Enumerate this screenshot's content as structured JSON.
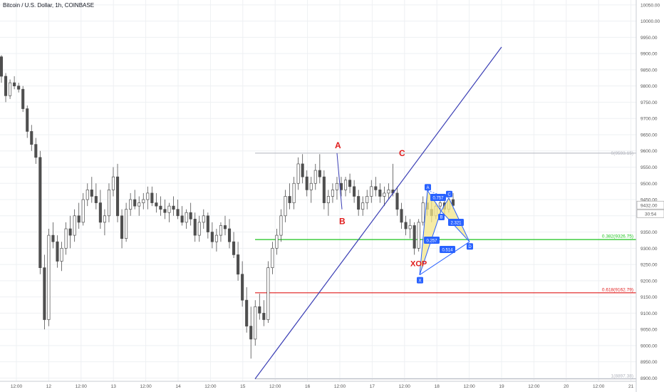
{
  "header": {
    "title": "Bitcoin / U.S. Dollar, 1h, COINBASE"
  },
  "colors": {
    "up": "#4f4f4f",
    "down": "#4f4f4f",
    "grid": "#eef0f3",
    "fib_green": "#1ec41e",
    "fib_red": "#e01b1b",
    "trend": "#3b3fb5",
    "pattern_fill": "#f3e58a",
    "pattern_line": "#2962ff",
    "label_red": "#e01b1b"
  },
  "chart_data": {
    "type": "candlestick",
    "title": "Bitcoin / U.S. Dollar, 1h, COINBASE",
    "y_ticks": [
      "10050.00",
      "10000.00",
      "9950.00",
      "9900.00",
      "9850.00",
      "9800.00",
      "9750.00",
      "9700.00",
      "9650.00",
      "9600.00",
      "9550.00",
      "9500.00",
      "9450.00",
      "9400.00",
      "9350.00",
      "9300.00",
      "9250.00",
      "9200.00",
      "9150.00",
      "9100.00",
      "9050.00",
      "9000.00",
      "8950.00",
      "8900.00"
    ],
    "x_ticks": [
      "12:00",
      "12",
      "12:00",
      "13",
      "12:00",
      "14",
      "12:00",
      "15",
      "12:00",
      "16",
      "12:00",
      "17",
      "12:00",
      "18",
      "12:00",
      "19",
      "12:00",
      "20",
      "12:00",
      "21"
    ],
    "ylim": [
      8890,
      10065
    ],
    "price_label": "9432.00",
    "countdown": "30:54",
    "fib_levels": [
      {
        "label": "0.382(9326.75)",
        "value": 9326.75,
        "color": "green"
      },
      {
        "label": "0.618(9162.79)",
        "value": 9162.79,
        "color": "red"
      }
    ],
    "range_top": {
      "label": "0(9593.15)",
      "value": 9593.15
    },
    "range_bottom": {
      "label": "1(8897.38)",
      "value": 8897.38
    },
    "trend_line": {
      "from_x": "15 06:00",
      "from_y": 8897.38,
      "to_x": "19 06:00",
      "to_y": 9920
    },
    "abc_labels": [
      "A",
      "B",
      "C"
    ],
    "pattern_label": "XOP",
    "harmonic_ratios": [
      "0.757",
      "2.321",
      "0.257",
      "0.514"
    ],
    "harmonic_points": [
      "X",
      "A",
      "B",
      "C",
      "D"
    ],
    "candles": [
      [
        9890,
        9895,
        9810,
        9830
      ],
      [
        9830,
        9840,
        9750,
        9770
      ],
      [
        9770,
        9820,
        9760,
        9810
      ],
      [
        9810,
        9830,
        9790,
        9800
      ],
      [
        9800,
        9810,
        9780,
        9790
      ],
      [
        9790,
        9800,
        9720,
        9730
      ],
      [
        9730,
        9740,
        9640,
        9660
      ],
      [
        9660,
        9680,
        9600,
        9620
      ],
      [
        9620,
        9640,
        9560,
        9580
      ],
      [
        9580,
        9600,
        9220,
        9240
      ],
      [
        9240,
        9280,
        9050,
        9080
      ],
      [
        9080,
        9360,
        9060,
        9340
      ],
      [
        9340,
        9380,
        9300,
        9320
      ],
      [
        9320,
        9340,
        9240,
        9260
      ],
      [
        9260,
        9320,
        9230,
        9300
      ],
      [
        9300,
        9380,
        9280,
        9360
      ],
      [
        9360,
        9400,
        9300,
        9340
      ],
      [
        9340,
        9420,
        9320,
        9400
      ],
      [
        9400,
        9440,
        9360,
        9380
      ],
      [
        9380,
        9470,
        9370,
        9450
      ],
      [
        9450,
        9500,
        9430,
        9480
      ],
      [
        9480,
        9520,
        9440,
        9460
      ],
      [
        9460,
        9500,
        9420,
        9440
      ],
      [
        9440,
        9480,
        9360,
        9380
      ],
      [
        9380,
        9420,
        9340,
        9400
      ],
      [
        9400,
        9500,
        9380,
        9480
      ],
      [
        9480,
        9550,
        9460,
        9520
      ],
      [
        9520,
        9560,
        9380,
        9400
      ],
      [
        9400,
        9420,
        9300,
        9330
      ],
      [
        9330,
        9440,
        9320,
        9420
      ],
      [
        9420,
        9470,
        9400,
        9450
      ],
      [
        9450,
        9480,
        9420,
        9430
      ],
      [
        9430,
        9460,
        9400,
        9440
      ],
      [
        9440,
        9470,
        9420,
        9450
      ],
      [
        9450,
        9490,
        9420,
        9470
      ],
      [
        9470,
        9490,
        9430,
        9440
      ],
      [
        9440,
        9470,
        9410,
        9430
      ],
      [
        9430,
        9460,
        9400,
        9420
      ],
      [
        9420,
        9450,
        9390,
        9410
      ],
      [
        9410,
        9440,
        9380,
        9430
      ],
      [
        9430,
        9460,
        9400,
        9420
      ],
      [
        9420,
        9450,
        9390,
        9400
      ],
      [
        9400,
        9430,
        9370,
        9380
      ],
      [
        9380,
        9420,
        9360,
        9410
      ],
      [
        9410,
        9440,
        9370,
        9390
      ],
      [
        9390,
        9410,
        9320,
        9340
      ],
      [
        9340,
        9400,
        9320,
        9380
      ],
      [
        9380,
        9420,
        9360,
        9400
      ],
      [
        9400,
        9410,
        9330,
        9350
      ],
      [
        9350,
        9380,
        9300,
        9320
      ],
      [
        9320,
        9360,
        9290,
        9340
      ],
      [
        9340,
        9380,
        9320,
        9370
      ],
      [
        9370,
        9400,
        9340,
        9360
      ],
      [
        9360,
        9390,
        9300,
        9320
      ],
      [
        9320,
        9350,
        9270,
        9280
      ],
      [
        9280,
        9320,
        9200,
        9220
      ],
      [
        9220,
        9260,
        9120,
        9140
      ],
      [
        9140,
        9180,
        9040,
        9060
      ],
      [
        9060,
        9120,
        8960,
        9020
      ],
      [
        9020,
        9140,
        9000,
        9120
      ],
      [
        9120,
        9160,
        9080,
        9100
      ],
      [
        9100,
        9140,
        9060,
        9080
      ],
      [
        9080,
        9260,
        9070,
        9240
      ],
      [
        9240,
        9320,
        9220,
        9300
      ],
      [
        9300,
        9360,
        9280,
        9340
      ],
      [
        9340,
        9420,
        9320,
        9400
      ],
      [
        9400,
        9480,
        9380,
        9460
      ],
      [
        9460,
        9500,
        9420,
        9440
      ],
      [
        9440,
        9520,
        9420,
        9500
      ],
      [
        9500,
        9580,
        9480,
        9560
      ],
      [
        9560,
        9590,
        9500,
        9520
      ],
      [
        9520,
        9540,
        9460,
        9480
      ],
      [
        9480,
        9520,
        9440,
        9500
      ],
      [
        9500,
        9560,
        9480,
        9540
      ],
      [
        9540,
        9590,
        9500,
        9520
      ],
      [
        9520,
        9540,
        9420,
        9440
      ],
      [
        9440,
        9480,
        9400,
        9460
      ],
      [
        9460,
        9500,
        9440,
        9480
      ],
      [
        9480,
        9520,
        9450,
        9500
      ],
      [
        9500,
        9520,
        9460,
        9480
      ],
      [
        9480,
        9520,
        9460,
        9510
      ],
      [
        9510,
        9530,
        9470,
        9490
      ],
      [
        9490,
        9510,
        9440,
        9460
      ],
      [
        9460,
        9480,
        9400,
        9420
      ],
      [
        9420,
        9460,
        9400,
        9440
      ],
      [
        9440,
        9480,
        9420,
        9460
      ],
      [
        9460,
        9510,
        9440,
        9490
      ],
      [
        9490,
        9520,
        9460,
        9480
      ],
      [
        9480,
        9500,
        9440,
        9460
      ],
      [
        9460,
        9490,
        9430,
        9470
      ],
      [
        9470,
        9500,
        9450,
        9480
      ],
      [
        9480,
        9560,
        9460,
        9470
      ],
      [
        9470,
        9490,
        9400,
        9420
      ],
      [
        9420,
        9440,
        9360,
        9380
      ],
      [
        9380,
        9400,
        9340,
        9360
      ],
      [
        9360,
        9390,
        9330,
        9370
      ],
      [
        9370,
        9380,
        9280,
        9300
      ],
      [
        9300,
        9390,
        9290,
        9380
      ],
      [
        9380,
        9460,
        9370,
        9440
      ],
      [
        9440,
        9470,
        9400,
        9420
      ],
      [
        9420,
        9450,
        9380,
        9400
      ],
      [
        9400,
        9440,
        9390,
        9430
      ],
      [
        9430,
        9450,
        9410,
        9440
      ],
      [
        9440,
        9460,
        9400,
        9420
      ],
      [
        9420,
        9460,
        9410,
        9450
      ],
      [
        9450,
        9470,
        9420,
        9432
      ]
    ]
  }
}
